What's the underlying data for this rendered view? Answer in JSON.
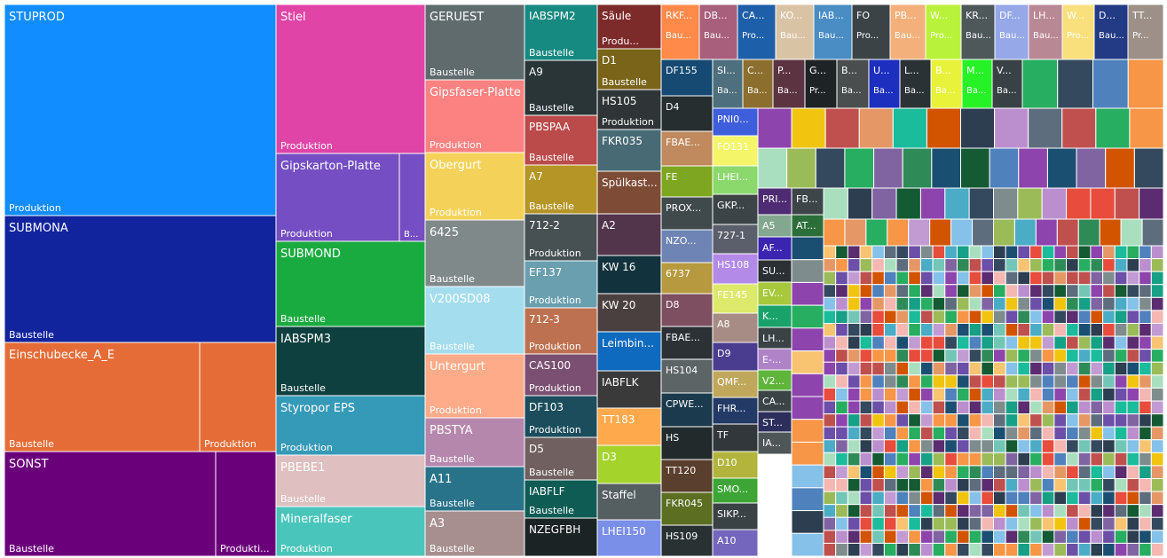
{
  "chart_data": {
    "type": "treemap",
    "title": "",
    "nodes": [
      {
        "label": "STUPROD",
        "sub": "Produktion",
        "color": "#118DFF"
      },
      {
        "label": "SUBMONA",
        "sub": "Baustelle",
        "color": "#12239E"
      },
      {
        "label": "Einschubecke_A_E",
        "sub": "Baustelle",
        "color": "#E66C37"
      },
      {
        "label": "",
        "sub": "Produktion",
        "color": "#E66C37"
      },
      {
        "label": "SONST",
        "sub": "Baustelle",
        "color": "#6B007B"
      },
      {
        "label": "",
        "sub": "Produkti...",
        "color": "#6B007B"
      },
      {
        "label": "Stiel",
        "sub": "Produktion",
        "color": "#E044A7"
      },
      {
        "label": "Gipskarton-Platte",
        "sub": "Produktion",
        "color": "#744EC2"
      },
      {
        "label": "",
        "sub": "B...",
        "color": "#744EC2"
      },
      {
        "label": "SUBMOND",
        "sub": "Baustelle",
        "color": "#1AAB40"
      },
      {
        "label": "IABSPM3",
        "sub": "Baustelle",
        "color": "#0E403F"
      },
      {
        "label": "Styropor EPS",
        "sub": "Produktion",
        "color": "#3599B8"
      },
      {
        "label": "PBEBE1",
        "sub": "Baustelle",
        "color": "#DFBFBF"
      },
      {
        "label": "Mineralfaser",
        "sub": "Produktion",
        "color": "#4AC5BB"
      },
      {
        "label": "GERUEST",
        "sub": "Baustelle",
        "color": "#5F6B6D"
      },
      {
        "label": "Gipsfaser-Platte",
        "sub": "Produktion",
        "color": "#FB8281"
      },
      {
        "label": "Obergurt",
        "sub": "Produktion",
        "color": "#F4D25A"
      },
      {
        "label": "6425",
        "sub": "Baustelle",
        "color": "#7F898A"
      },
      {
        "label": "V200SD08",
        "sub": "Baustelle",
        "color": "#A4DDEE"
      },
      {
        "label": "Untergurt",
        "sub": "Produktion",
        "color": "#FDAB89"
      },
      {
        "label": "PBSTYA",
        "sub": "Baustelle",
        "color": "#B687AC"
      },
      {
        "label": "A11",
        "sub": "Baustelle",
        "color": "#28738A"
      },
      {
        "label": "A3",
        "sub": "Baustelle",
        "color": "#A78F8F"
      },
      {
        "label": "IABSPM2",
        "sub": "Baustelle",
        "color": "#168980"
      },
      {
        "label": "A9",
        "sub": "Baustelle",
        "color": "#293537"
      },
      {
        "label": "PBSPAA",
        "sub": "Baustelle",
        "color": "#BB4A4A"
      },
      {
        "label": "A7",
        "sub": "Baustelle",
        "color": "#B59525"
      },
      {
        "label": "712-2",
        "sub": "Produktion",
        "color": "#475052"
      },
      {
        "label": "EF137",
        "sub": "Produktion",
        "color": "#6A9FB0"
      },
      {
        "label": "712-3",
        "sub": "Produktion",
        "color": "#BD7150"
      },
      {
        "label": "CAS100",
        "sub": "Produktion",
        "color": "#7B4F71"
      },
      {
        "label": "DF103",
        "sub": "Produktion",
        "color": "#1B4D5C"
      },
      {
        "label": "D5",
        "sub": "Baustelle",
        "color": "#706060"
      },
      {
        "label": "IABFLF",
        "sub": "Baustelle",
        "color": "#0F5C55"
      },
      {
        "label": "NZEGFBH",
        "sub": "",
        "color": "#1C2325"
      },
      {
        "label": "Säule",
        "sub": "Produ...",
        "color": "#7D2A2A"
      },
      {
        "label": "D1",
        "sub": "Baustelle",
        "color": "#796419"
      },
      {
        "label": "HS105",
        "sub": "Produktion",
        "color": "#2F3536"
      },
      {
        "label": "FKR035",
        "sub": "",
        "color": "#476A75"
      },
      {
        "label": "Spülkast...",
        "sub": "",
        "color": "#7E4C36"
      },
      {
        "label": "A2",
        "sub": "",
        "color": "#52354B"
      },
      {
        "label": "KW 16",
        "sub": "",
        "color": "#12333D"
      },
      {
        "label": "KW 20",
        "sub": "",
        "color": "#4B4040"
      },
      {
        "label": "Leimbin...",
        "sub": "",
        "color": "#0D6ABF"
      },
      {
        "label": "IABFLK",
        "sub": "",
        "color": "#3A3A3A"
      },
      {
        "label": "TT183",
        "sub": "",
        "color": "#FFA94D"
      },
      {
        "label": "D3",
        "sub": "",
        "color": "#A4D32C"
      },
      {
        "label": "Staffel",
        "sub": "",
        "color": "#555E60"
      },
      {
        "label": "LHEI150",
        "sub": "",
        "color": "#7A8FE8"
      },
      {
        "label": "DF155",
        "sub": "",
        "color": "#164A73"
      },
      {
        "label": "D4",
        "sub": "",
        "color": "#262E30"
      },
      {
        "label": "FBAE...",
        "sub": "",
        "color": "#C08A5E"
      },
      {
        "label": "FE",
        "sub": "",
        "color": "#7EA620"
      },
      {
        "label": "PROX...",
        "sub": "",
        "color": "#404A4C"
      },
      {
        "label": "NZO...",
        "sub": "",
        "color": "#6E84B5"
      },
      {
        "label": "6737",
        "sub": "",
        "color": "#B79A3F"
      },
      {
        "label": "D8",
        "sub": "",
        "color": "#7D4F61"
      },
      {
        "label": "FBAE...",
        "sub": "",
        "color": "#2C3136"
      },
      {
        "label": "HS104",
        "sub": "",
        "color": "#5D6466"
      },
      {
        "label": "CPWE...",
        "sub": "",
        "color": "#1B3A4D"
      },
      {
        "label": "HS",
        "sub": "",
        "color": "#222A2C"
      },
      {
        "label": "TT120",
        "sub": "",
        "color": "#5A3E2E"
      },
      {
        "label": "FKR045",
        "sub": "",
        "color": "#5C6E21"
      },
      {
        "label": "HS109",
        "sub": "",
        "color": "#2A3133"
      },
      {
        "label": "PNI0...",
        "sub": "",
        "color": "#3F5EDB"
      },
      {
        "label": "FO131",
        "sub": "",
        "color": "#F5F56A"
      },
      {
        "label": "LHEI...",
        "sub": "",
        "color": "#8BD86D"
      },
      {
        "label": "GKP...",
        "sub": "",
        "color": "#3C4447"
      },
      {
        "label": "727-1",
        "sub": "",
        "color": "#5B5F6B"
      },
      {
        "label": "HS108",
        "sub": "",
        "color": "#B38AE8"
      },
      {
        "label": "FE145",
        "sub": "",
        "color": "#DDE96A"
      },
      {
        "label": "A8",
        "sub": "",
        "color": "#A78C85"
      },
      {
        "label": "D9",
        "sub": "",
        "color": "#4A3D8F"
      },
      {
        "label": "QMF...",
        "sub": "",
        "color": "#BFA75C"
      },
      {
        "label": "FHR...",
        "sub": "",
        "color": "#243A66"
      },
      {
        "label": "TF",
        "sub": "",
        "color": "#31373A"
      },
      {
        "label": "D10",
        "sub": "",
        "color": "#B2B43E"
      },
      {
        "label": "SMO...",
        "sub": "",
        "color": "#3DA535"
      },
      {
        "label": "SIKP...",
        "sub": "",
        "color": "#3A4245"
      },
      {
        "label": "A10",
        "sub": "",
        "color": "#7466BC"
      },
      {
        "label": "RKF...",
        "sub": "Bau...",
        "color": "#FF8A4A"
      },
      {
        "label": "DB...",
        "sub": "Bau...",
        "color": "#A75F7B"
      },
      {
        "label": "CA...",
        "sub": "Pro...",
        "color": "#1D5FA8"
      },
      {
        "label": "KO...",
        "sub": "Bau...",
        "color": "#D9C3A5"
      },
      {
        "label": "IAB...",
        "sub": "Bau...",
        "color": "#4A8CC4"
      },
      {
        "label": "FO",
        "sub": "Pro...",
        "color": "#3C4346"
      },
      {
        "label": "PB...",
        "sub": "Bau...",
        "color": "#F4B07B"
      },
      {
        "label": "W...",
        "sub": "Pro...",
        "color": "#B9F23A"
      },
      {
        "label": "KR...",
        "sub": "Bau...",
        "color": "#4E585B"
      },
      {
        "label": "DF...",
        "sub": "Bau...",
        "color": "#96A8E8"
      },
      {
        "label": "LH...",
        "sub": "Bau...",
        "color": "#B98895"
      },
      {
        "label": "W...",
        "sub": "Pro...",
        "color": "#F9E07D"
      },
      {
        "label": "D...",
        "sub": "Bau...",
        "color": "#233A85"
      },
      {
        "label": "TT...",
        "sub": "Pr...",
        "color": "#9C9088"
      },
      {
        "label": "SI...",
        "sub": "Ba...",
        "color": "#4E6F7D"
      },
      {
        "label": "C...",
        "sub": "Ba...",
        "color": "#8C6E2E"
      },
      {
        "label": "P...",
        "sub": "Ba...",
        "color": "#5C3441"
      },
      {
        "label": "G...",
        "sub": "Pr...",
        "color": "#1E2426"
      },
      {
        "label": "B...",
        "sub": "Ba...",
        "color": "#4A4E4F"
      },
      {
        "label": "U...",
        "sub": "Ba...",
        "color": "#1C2FBF"
      },
      {
        "label": "L...",
        "sub": "Ba...",
        "color": "#2B3235"
      },
      {
        "label": "B...",
        "sub": "Ba...",
        "color": "#E8F23A"
      },
      {
        "label": "M...",
        "sub": "Ba...",
        "color": "#26F226"
      },
      {
        "label": "V...",
        "sub": "Ba...",
        "color": "#3A4144"
      },
      {
        "label": "PRI...",
        "sub": "",
        "color": "#4E2B73"
      },
      {
        "label": "FB...",
        "sub": "",
        "color": "#3D4548"
      },
      {
        "label": "A5",
        "sub": "",
        "color": "#84A88F"
      },
      {
        "label": "AT...",
        "sub": "",
        "color": "#2C6E3A"
      },
      {
        "label": "AF...",
        "sub": "",
        "color": "#3A24B0"
      },
      {
        "label": "SU...",
        "sub": "",
        "color": "#2A3033"
      },
      {
        "label": "EV...",
        "sub": "",
        "color": "#A6C83A"
      },
      {
        "label": "K...",
        "sub": "",
        "color": "#19A26A"
      },
      {
        "label": "LH...",
        "sub": "",
        "color": "#3A4245"
      },
      {
        "label": "E-...",
        "sub": "",
        "color": "#B083C8"
      },
      {
        "label": "V2...",
        "sub": "",
        "color": "#5FB53A"
      },
      {
        "label": "CA...",
        "sub": "",
        "color": "#3B4346"
      },
      {
        "label": "ST...",
        "sub": "",
        "color": "#2D2E5C"
      },
      {
        "label": "IA...",
        "sub": "",
        "color": "#4F5658"
      }
    ]
  }
}
